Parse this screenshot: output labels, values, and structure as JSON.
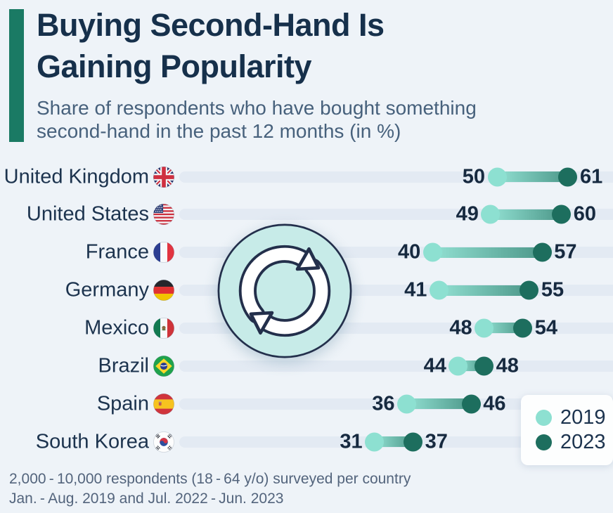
{
  "header": {
    "accent_color": "#1a7a64",
    "title_lines": [
      "Buying Second-Hand Is",
      "Gaining Popularity"
    ],
    "subtitle_lines": [
      "Share of respondents who have bought something",
      "second-hand in the past 12 months (in %)"
    ]
  },
  "chart_data": {
    "type": "dumbbell",
    "unit": "%",
    "categories": [
      "United Kingdom",
      "United States",
      "France",
      "Germany",
      "Mexico",
      "Brazil",
      "Spain",
      "South Korea"
    ],
    "flags": [
      "uk",
      "us",
      "fr",
      "de",
      "mx",
      "br",
      "es",
      "kr"
    ],
    "series": [
      {
        "name": "2019",
        "color": "#8de0d1",
        "values": [
          50,
          49,
          40,
          41,
          48,
          44,
          36,
          31
        ]
      },
      {
        "name": "2023",
        "color": "#1d6e5e",
        "values": [
          61,
          60,
          57,
          55,
          54,
          48,
          46,
          37
        ]
      }
    ],
    "xlim": [
      0,
      68
    ],
    "grid": false,
    "legend_position": "bottom-right",
    "track_color": "#e3eaf3",
    "center_icon": "second-hand-cycle"
  },
  "legend": {
    "items": [
      {
        "label": "2019",
        "color": "#8de0d1"
      },
      {
        "label": "2023",
        "color": "#1d6e5e"
      }
    ]
  },
  "footer": {
    "lines": [
      "2,000 - 10,000 respondents (18 - 64 y/o) surveyed per country",
      "Jan. - Aug. 2019 and Jul. 2022 - Jun. 2023"
    ]
  }
}
